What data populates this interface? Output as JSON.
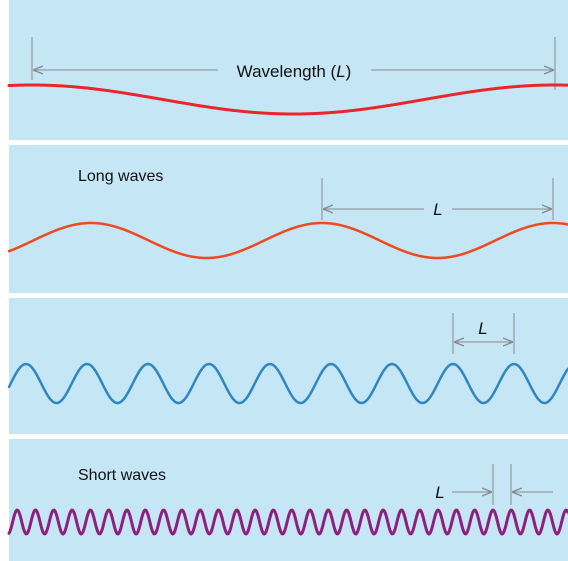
{
  "colors": {
    "background": "#c4e6f5",
    "divider": "#ffffff",
    "dimension_line": "#8a8a8a",
    "wave_1": "#e8262c",
    "wave_2": "#ee4a1f",
    "wave_3": "#2f86c0",
    "wave_4": "#8e1f7e",
    "label_text": "#111111"
  },
  "panels": [
    {
      "heading": "",
      "dimension_label": "Wavelength (",
      "dimension_symbol": "L",
      "dimension_label_end": ")"
    },
    {
      "heading": "Long waves",
      "dimension_label": "",
      "dimension_symbol": "L",
      "dimension_label_end": ""
    },
    {
      "heading": "",
      "dimension_label": "",
      "dimension_symbol": "L",
      "dimension_label_end": ""
    },
    {
      "heading": "Short waves",
      "dimension_label": "",
      "dimension_symbol": "L",
      "dimension_label_end": ""
    }
  ]
}
